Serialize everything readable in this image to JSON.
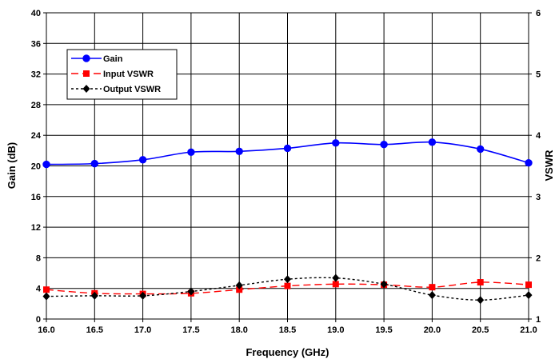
{
  "chart_data": {
    "type": "line",
    "title": "",
    "xlabel": "Frequency (GHz)",
    "ylabel": "Gain (dB)",
    "y2label": "VSWR",
    "x": [
      16.0,
      16.5,
      17.0,
      17.5,
      18.0,
      18.5,
      19.0,
      19.5,
      20.0,
      20.5,
      21.0
    ],
    "x_tick_labels": [
      "16.0",
      "16.5",
      "17.0",
      "17.5",
      "18.0",
      "18.5",
      "19.0",
      "19.5",
      "20.0",
      "20.5",
      "21.0"
    ],
    "xlim": [
      16.0,
      21.0
    ],
    "ylim": [
      0,
      40
    ],
    "y_ticks": [
      "0",
      "4",
      "8",
      "12",
      "16",
      "20",
      "24",
      "28",
      "32",
      "36",
      "40"
    ],
    "y2lim": [
      1,
      6
    ],
    "y2_ticks": [
      "1",
      "2",
      "3",
      "4",
      "5",
      "6"
    ],
    "grid": true,
    "legend_position": "top-left",
    "series": [
      {
        "name": "Gain",
        "axis": "left",
        "color": "#0000ff",
        "line": "solid",
        "marker": "circle",
        "values": [
          20.2,
          20.3,
          20.8,
          21.8,
          21.9,
          22.3,
          23.0,
          22.8,
          23.1,
          22.2,
          20.4
        ]
      },
      {
        "name": "Input VSWR",
        "axis": "right",
        "color": "#ff0000",
        "line": "dashed",
        "marker": "square",
        "values": [
          1.48,
          1.42,
          1.41,
          1.42,
          1.48,
          1.54,
          1.57,
          1.56,
          1.52,
          1.6,
          1.56
        ]
      },
      {
        "name": "Output VSWR",
        "axis": "right",
        "color": "#000000",
        "line": "dotted",
        "marker": "diamond",
        "values": [
          1.37,
          1.38,
          1.38,
          1.45,
          1.55,
          1.65,
          1.67,
          1.57,
          1.39,
          1.31,
          1.39
        ]
      }
    ]
  }
}
